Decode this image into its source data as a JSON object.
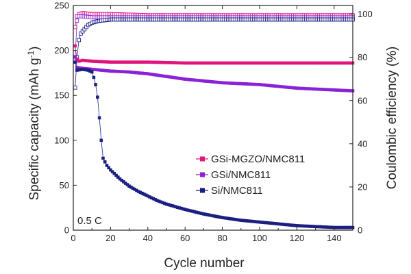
{
  "chart_data": {
    "type": "scatter",
    "annotation": "0.5 C",
    "x_axis": {
      "label": "Cycle number",
      "range": [
        0,
        150
      ],
      "ticks": [
        0,
        20,
        40,
        60,
        80,
        100,
        120,
        140
      ],
      "tick_labels": [
        "0",
        "20",
        "40",
        "60",
        "80",
        "100",
        "120",
        "140"
      ]
    },
    "y_left": {
      "label_main": "Specific capacity (mAh g",
      "label_sup": "-1",
      "label_end": ")",
      "range": [
        0,
        250
      ],
      "ticks": [
        0,
        50,
        100,
        150,
        200,
        250
      ],
      "tick_labels": [
        "0",
        "50",
        "100",
        "150",
        "200",
        "250"
      ]
    },
    "y_right": {
      "label": "Coulombic efficiency (%)",
      "range": [
        0,
        104
      ],
      "ticks": [
        0,
        20,
        40,
        60,
        80,
        100
      ],
      "tick_labels": [
        "0",
        "20",
        "40",
        "60",
        "80",
        "100"
      ]
    },
    "legend": {
      "placement": "center-right",
      "entries": [
        "GSi-MGZO/NMC811",
        "GSi/NMC811",
        "Si/NMC811"
      ]
    },
    "series": [
      {
        "name": "GSi-MGZO/NMC811",
        "color": "#e0147c",
        "axis": "left",
        "kind": "capacity",
        "points": [
          [
            1,
            205
          ],
          [
            2,
            190
          ],
          [
            3,
            188
          ],
          [
            5,
            189
          ],
          [
            10,
            188
          ],
          [
            20,
            187
          ],
          [
            40,
            187
          ],
          [
            60,
            186
          ],
          [
            80,
            186
          ],
          [
            100,
            186
          ],
          [
            120,
            186
          ],
          [
            150,
            186
          ]
        ]
      },
      {
        "name": "GSi/NMC811",
        "color": "#8a22d6",
        "axis": "left",
        "kind": "capacity",
        "points": [
          [
            1,
            193
          ],
          [
            2,
            181
          ],
          [
            5,
            180
          ],
          [
            10,
            179
          ],
          [
            20,
            177
          ],
          [
            30,
            176
          ],
          [
            40,
            174
          ],
          [
            50,
            171
          ],
          [
            60,
            168
          ],
          [
            70,
            166
          ],
          [
            80,
            164
          ],
          [
            90,
            163
          ],
          [
            100,
            162
          ],
          [
            110,
            160
          ],
          [
            120,
            158
          ],
          [
            130,
            157
          ],
          [
            140,
            156
          ],
          [
            150,
            155
          ]
        ]
      },
      {
        "name": "Si/NMC811",
        "color": "#1a1f80",
        "axis": "left",
        "kind": "capacity",
        "points": [
          [
            1,
            187
          ],
          [
            2,
            178
          ],
          [
            5,
            179
          ],
          [
            8,
            178
          ],
          [
            10,
            176
          ],
          [
            11,
            170
          ],
          [
            12,
            162
          ],
          [
            13,
            148
          ],
          [
            14,
            125
          ],
          [
            15,
            100
          ],
          [
            16,
            80
          ],
          [
            18,
            72
          ],
          [
            20,
            67
          ],
          [
            25,
            57
          ],
          [
            30,
            49
          ],
          [
            35,
            43
          ],
          [
            40,
            38
          ],
          [
            45,
            33
          ],
          [
            50,
            29
          ],
          [
            60,
            23
          ],
          [
            70,
            18
          ],
          [
            80,
            14
          ],
          [
            90,
            11
          ],
          [
            100,
            9
          ],
          [
            110,
            7
          ],
          [
            120,
            5
          ],
          [
            130,
            4
          ],
          [
            140,
            3
          ],
          [
            150,
            3
          ]
        ]
      },
      {
        "name": "GSi-MGZO/NMC811 CE",
        "color": "#e0147c",
        "axis": "right",
        "kind": "efficiency",
        "points": [
          [
            1,
            94
          ],
          [
            2,
            99
          ],
          [
            3,
            100
          ],
          [
            5,
            100.5
          ],
          [
            10,
            100
          ],
          [
            20,
            100
          ],
          [
            40,
            99.5
          ],
          [
            60,
            99.5
          ],
          [
            80,
            99.5
          ],
          [
            100,
            99.5
          ],
          [
            120,
            99.5
          ],
          [
            150,
            99.5
          ]
        ]
      },
      {
        "name": "GSi/NMC811 CE",
        "color": "#8a22d6",
        "axis": "right",
        "kind": "efficiency",
        "points": [
          [
            1,
            80
          ],
          [
            2,
            97
          ],
          [
            3,
            99
          ],
          [
            5,
            99
          ],
          [
            10,
            98.5
          ],
          [
            20,
            98.5
          ],
          [
            40,
            98.5
          ],
          [
            60,
            98.5
          ],
          [
            80,
            98.5
          ],
          [
            100,
            98.5
          ],
          [
            120,
            98.5
          ],
          [
            150,
            98.5
          ]
        ]
      },
      {
        "name": "Si/NMC811 CE",
        "color": "#1a1f80",
        "axis": "right",
        "kind": "efficiency",
        "points": [
          [
            1,
            66
          ],
          [
            2,
            80
          ],
          [
            3,
            88
          ],
          [
            4,
            91
          ],
          [
            6,
            93
          ],
          [
            8,
            95
          ],
          [
            10,
            96
          ],
          [
            12,
            96.5
          ],
          [
            15,
            97
          ],
          [
            20,
            97.5
          ],
          [
            30,
            97.5
          ],
          [
            40,
            97.5
          ],
          [
            60,
            97.5
          ],
          [
            80,
            97.5
          ],
          [
            100,
            97.5
          ],
          [
            120,
            97.5
          ],
          [
            150,
            97.5
          ]
        ]
      }
    ]
  }
}
